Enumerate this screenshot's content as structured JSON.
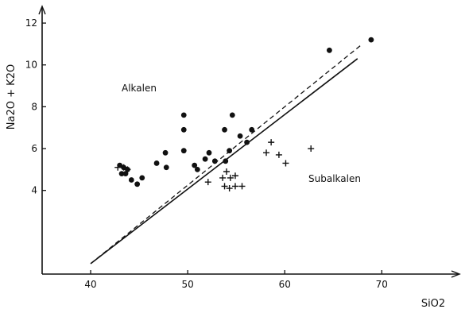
{
  "chart_data": {
    "type": "scatter",
    "title": "",
    "xlabel": "SiO2",
    "ylabel": "Na2O + K2O",
    "xlim": [
      35,
      78
    ],
    "ylim": [
      0,
      12.8
    ],
    "grid": false,
    "x_ticks": [
      40,
      50,
      60,
      70
    ],
    "y_ticks": [
      4,
      6,
      8,
      10,
      12
    ],
    "annotations": [
      "Alkalen",
      "Subalkalen"
    ],
    "lines": [
      {
        "style": "solid",
        "x": [
          40,
          67.5
        ],
        "y": [
          0.5,
          10.3
        ]
      },
      {
        "style": "dashed",
        "x": [
          40,
          68
        ],
        "y": [
          0.5,
          11.0
        ]
      }
    ],
    "series": [
      {
        "marker": "circle",
        "x": [
          43.0,
          43.4,
          43.8,
          43.2,
          43.6,
          44.2,
          44.8,
          45.3,
          46.8,
          47.7,
          47.8,
          49.6,
          49.6,
          49.6,
          50.7,
          51.0,
          51.8,
          52.2,
          52.8,
          53.8,
          53.9,
          54.3,
          54.6,
          55.4,
          56.1,
          56.6,
          64.6,
          68.9
        ],
        "y": [
          5.2,
          5.1,
          5.0,
          4.8,
          4.8,
          4.5,
          4.3,
          4.6,
          5.3,
          5.8,
          5.1,
          7.6,
          6.9,
          5.9,
          5.2,
          5.0,
          5.5,
          5.8,
          5.4,
          6.9,
          5.4,
          5.9,
          7.6,
          6.6,
          6.3,
          6.9,
          10.7,
          11.2
        ]
      },
      {
        "marker": "plus",
        "x": [
          42.8,
          43.4,
          43.8,
          52.1,
          53.6,
          54.0,
          54.4,
          54.9,
          55.6,
          53.8,
          54.3,
          54.9,
          58.1,
          58.6,
          59.4,
          60.1,
          62.7
        ],
        "y": [
          5.1,
          5.1,
          5.0,
          4.4,
          4.6,
          4.9,
          4.6,
          4.7,
          4.2,
          4.2,
          4.1,
          4.2,
          5.8,
          6.3,
          5.7,
          5.3,
          6.0
        ]
      }
    ]
  }
}
